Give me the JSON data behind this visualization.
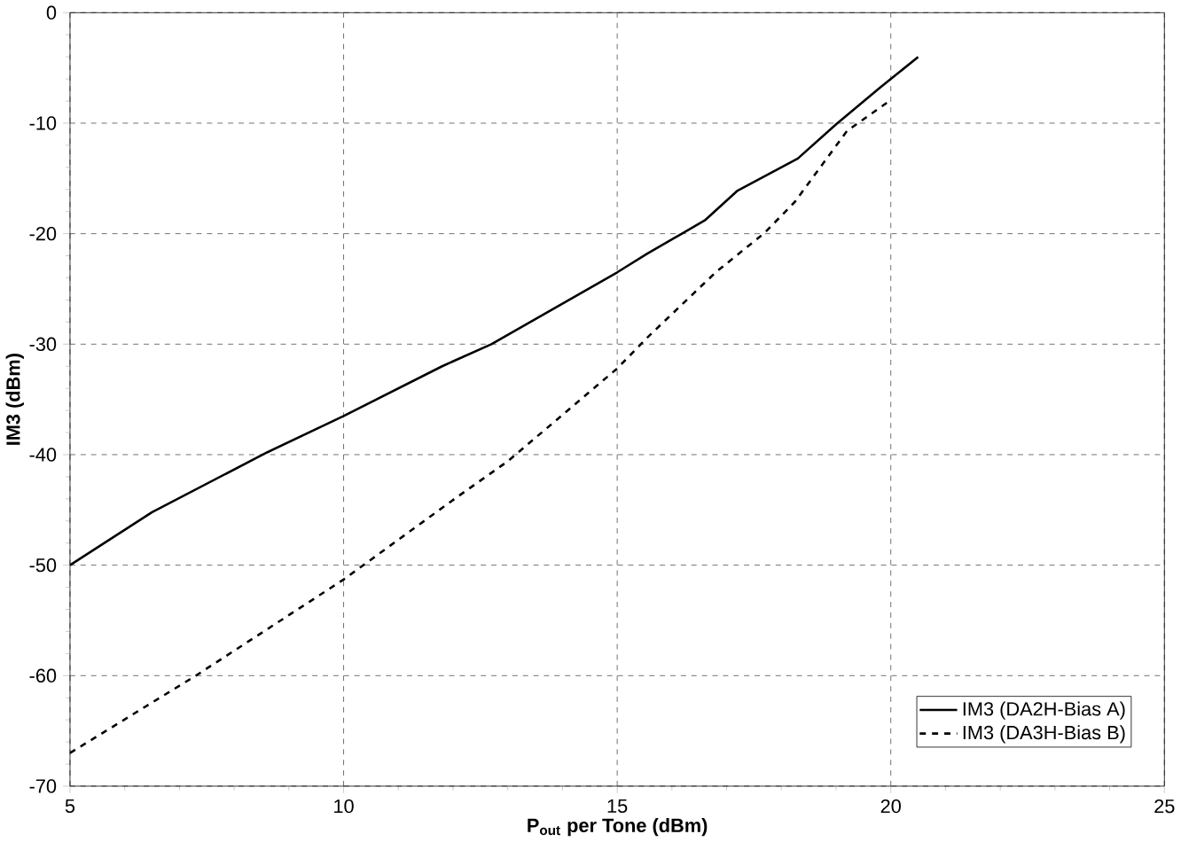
{
  "chart_data": {
    "type": "line",
    "xlabel": "P$_{out}$ per Tone (dBm)",
    "ylabel": "IM3 (dBm)",
    "xlim": [
      5,
      25
    ],
    "xticks": [
      5,
      10,
      15,
      20,
      25
    ],
    "ylim": [
      -70,
      0
    ],
    "yticks": [
      -70,
      -60,
      -50,
      -40,
      -30,
      -20,
      -10,
      0
    ],
    "grid": true,
    "legend": "bottom right",
    "series": [
      {
        "name": "IM3 (DA2H-Bias A)",
        "color": "#000000",
        "line_style": "solid",
        "x": [
          5,
          6.5,
          8.6,
          10,
          11.8,
          12.7,
          15,
          15.55,
          16.6,
          17.2,
          18.3,
          19,
          19.8,
          20.5
        ],
        "values": [
          -50,
          -45.2,
          -39.8,
          -36.5,
          -32,
          -30,
          -23.5,
          -21.8,
          -18.8,
          -16.1,
          -13.2,
          -10.1,
          -6.8,
          -4
        ]
      },
      {
        "name": "IM3 (DA3H-Bias B)",
        "color": "#000000",
        "line_style": "dashed",
        "x": [
          5,
          7.3,
          10,
          12,
          13,
          15,
          15.55,
          16.8,
          17.7,
          18.25,
          19.2,
          20
        ],
        "values": [
          -67,
          -60,
          -51.3,
          -44.1,
          -40.6,
          -32.2,
          -29.4,
          -23.5,
          -19.9,
          -17.1,
          -10.7,
          -7.9
        ]
      }
    ]
  }
}
